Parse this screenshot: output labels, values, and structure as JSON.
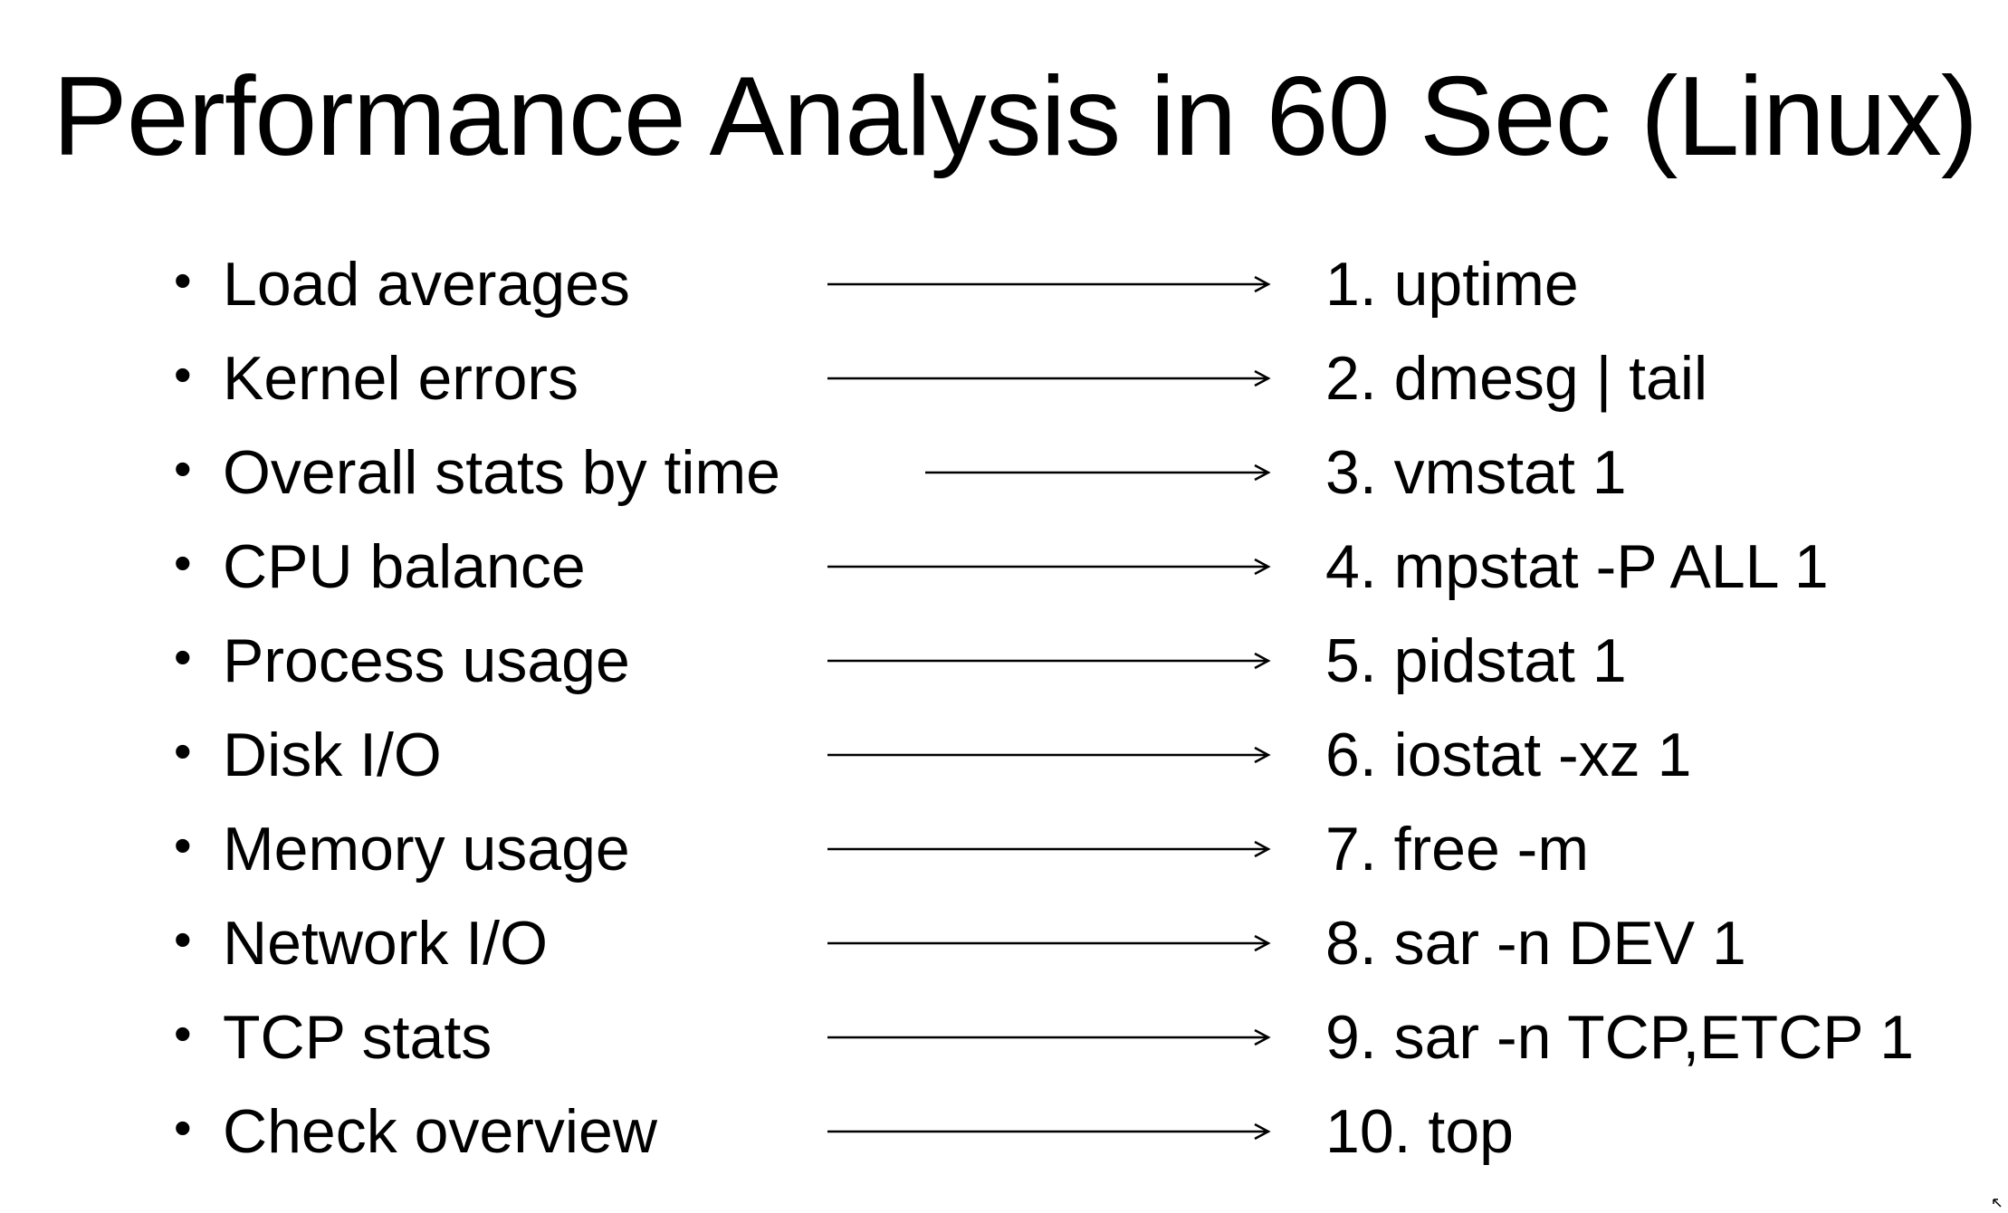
{
  "slide": {
    "title": "Performance Analysis in 60 Sec (Linux)",
    "bullet_glyph": "•",
    "rows": [
      {
        "label": "Load averages",
        "command": "1. uptime"
      },
      {
        "label": "Kernel errors",
        "command": "2. dmesg | tail"
      },
      {
        "label": "Overall stats by time",
        "command": "3. vmstat 1"
      },
      {
        "label": "CPU balance",
        "command": "4. mpstat -P ALL 1"
      },
      {
        "label": "Process usage",
        "command": "5. pidstat 1"
      },
      {
        "label": "Disk I/O",
        "command": "6. iostat -xz 1"
      },
      {
        "label": "Memory usage",
        "command": "7. free -m"
      },
      {
        "label": "Network I/O",
        "command": "8. sar -n DEV 1"
      },
      {
        "label": "TCP stats",
        "command": "9. sar -n TCP,ETCP 1"
      },
      {
        "label": "Check overview",
        "command": "10. top"
      }
    ]
  },
  "colors": {
    "background": "#ffffff",
    "text": "#000000"
  },
  "icons": {
    "arrow": "arrow-right-icon"
  }
}
